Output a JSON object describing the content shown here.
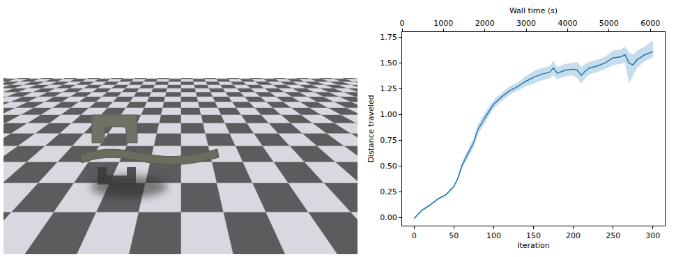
{
  "chart_data": {
    "type": "line",
    "x_label": "Iteration",
    "y_label": "Distance traveled",
    "x2_label": "Wall time (s)",
    "x": [
      0,
      10,
      20,
      30,
      40,
      50,
      55,
      60,
      65,
      70,
      75,
      80,
      90,
      100,
      110,
      120,
      130,
      140,
      150,
      160,
      170,
      175,
      180,
      190,
      200,
      205,
      210,
      215,
      220,
      230,
      240,
      250,
      260,
      265,
      270,
      275,
      280,
      290,
      300
    ],
    "values": [
      -0.01,
      0.07,
      0.12,
      0.18,
      0.22,
      0.3,
      0.38,
      0.5,
      0.58,
      0.65,
      0.73,
      0.85,
      0.98,
      1.1,
      1.17,
      1.23,
      1.27,
      1.32,
      1.36,
      1.39,
      1.41,
      1.45,
      1.4,
      1.43,
      1.44,
      1.43,
      1.38,
      1.42,
      1.45,
      1.47,
      1.5,
      1.55,
      1.56,
      1.58,
      1.5,
      1.48,
      1.53,
      1.58,
      1.61
    ],
    "band": {
      "lower": [
        -0.02,
        0.06,
        0.11,
        0.17,
        0.21,
        0.29,
        0.36,
        0.47,
        0.54,
        0.61,
        0.68,
        0.8,
        0.93,
        1.06,
        1.13,
        1.19,
        1.23,
        1.27,
        1.3,
        1.33,
        1.35,
        1.38,
        1.34,
        1.37,
        1.38,
        1.35,
        1.3,
        1.35,
        1.39,
        1.41,
        1.44,
        1.48,
        1.49,
        1.5,
        1.3,
        1.38,
        1.45,
        1.52,
        1.55
      ],
      "upper": [
        0.0,
        0.08,
        0.13,
        0.19,
        0.23,
        0.31,
        0.4,
        0.53,
        0.62,
        0.69,
        0.77,
        0.9,
        1.03,
        1.14,
        1.21,
        1.27,
        1.31,
        1.37,
        1.42,
        1.45,
        1.47,
        1.52,
        1.46,
        1.49,
        1.5,
        1.51,
        1.46,
        1.49,
        1.51,
        1.53,
        1.56,
        1.62,
        1.63,
        1.66,
        1.6,
        1.58,
        1.62,
        1.66,
        1.72
      ]
    },
    "color": "#1f77b4",
    "xlim": [
      -15,
      315
    ],
    "xticks": [
      0,
      50,
      100,
      150,
      200,
      250,
      300
    ],
    "ylim": [
      -0.08,
      1.8
    ],
    "yticks": [
      {
        "value": 0,
        "label": "0.00"
      },
      {
        "value": 0.25,
        "label": "0.25"
      },
      {
        "value": 0.5,
        "label": "0.50"
      },
      {
        "value": 0.75,
        "label": "0.75"
      },
      {
        "value": 1,
        "label": "1.00"
      },
      {
        "value": 1.25,
        "label": "1.25"
      },
      {
        "value": 1.5,
        "label": "1.50"
      },
      {
        "value": 1.75,
        "label": "1.75"
      }
    ],
    "x2lim": [
      0,
      6350
    ],
    "x2ticks": [
      0,
      1000,
      2000,
      3000,
      4000,
      5000,
      6000
    ],
    "grid": false
  }
}
